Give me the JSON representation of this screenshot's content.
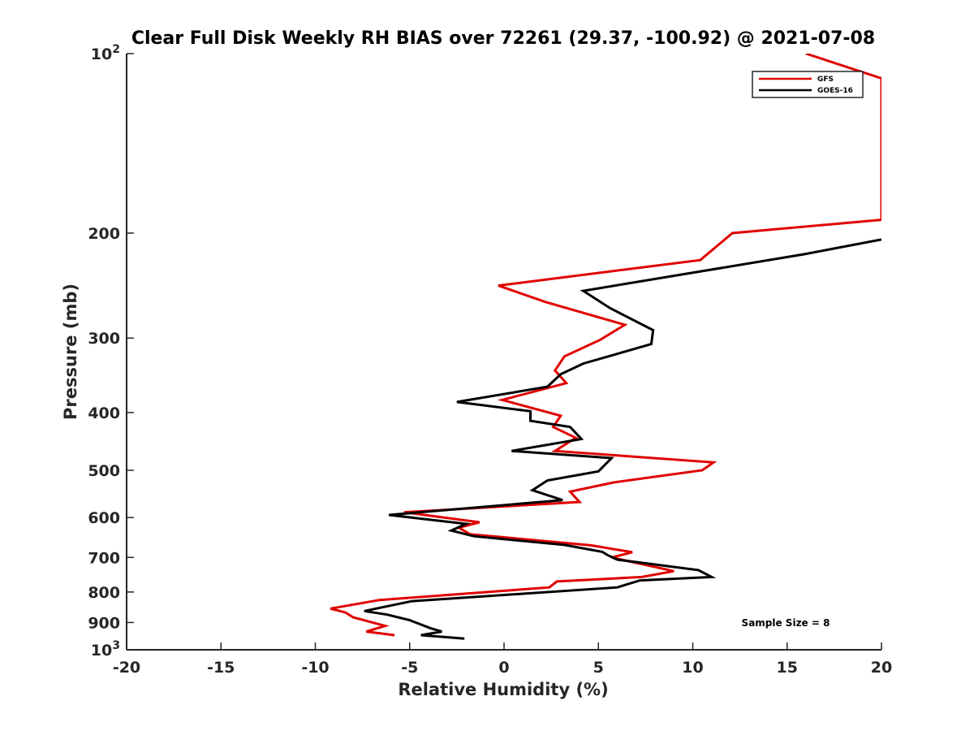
{
  "chart_data": {
    "type": "line",
    "title": "Clear Full Disk Weekly RH BIAS over 72261 (29.37, -100.92) @ 2021-07-08",
    "xlabel": "Relative Humidity (%)",
    "ylabel": "Pressure (mb)",
    "xlim": [
      -20,
      20
    ],
    "ylim": [
      100,
      1000
    ],
    "y_scale": "log",
    "y_reversed": true,
    "x_ticks": [
      "-20",
      "-15",
      "-10",
      "-5",
      "0",
      "5",
      "10",
      "15",
      "20"
    ],
    "y_ticks": [
      {
        "value": 100,
        "base": "10",
        "exp": "2"
      },
      {
        "value": 200,
        "label": "200"
      },
      {
        "value": 300,
        "label": "300"
      },
      {
        "value": 400,
        "label": "400"
      },
      {
        "value": 500,
        "label": "500"
      },
      {
        "value": 600,
        "label": "600"
      },
      {
        "value": 700,
        "label": "700"
      },
      {
        "value": 800,
        "label": "800"
      },
      {
        "value": 900,
        "label": "900"
      },
      {
        "value": 1000,
        "base": "10",
        "exp": "3"
      }
    ],
    "legend_position": "top-right",
    "annotation": "Sample Size = 8",
    "series": [
      {
        "name": "GFS",
        "color": "#e00000",
        "points": [
          [
            16.0,
            100
          ],
          [
            20.0,
            110
          ],
          [
            20.0,
            190
          ],
          [
            12.1,
            200
          ],
          [
            10.4,
            222
          ],
          [
            -0.3,
            245
          ],
          [
            2.2,
            261
          ],
          [
            6.4,
            285
          ],
          [
            5.1,
            302
          ],
          [
            3.2,
            322
          ],
          [
            2.7,
            340
          ],
          [
            3.3,
            357
          ],
          [
            -0.1,
            381
          ],
          [
            3.0,
            405
          ],
          [
            2.6,
            423
          ],
          [
            3.8,
            441
          ],
          [
            2.7,
            464
          ],
          [
            11.1,
            485
          ],
          [
            10.5,
            500
          ],
          [
            5.8,
            524
          ],
          [
            3.5,
            543
          ],
          [
            4.0,
            565
          ],
          [
            -5.3,
            588
          ],
          [
            -1.3,
            611
          ],
          [
            -2.4,
            624
          ],
          [
            -1.8,
            640
          ],
          [
            4.6,
            668
          ],
          [
            6.8,
            686
          ],
          [
            5.7,
            700
          ],
          [
            9.0,
            738
          ],
          [
            7.3,
            755
          ],
          [
            2.8,
            768
          ],
          [
            2.4,
            786
          ],
          [
            -6.6,
            825
          ],
          [
            -9.2,
            853
          ],
          [
            -8.4,
            866
          ],
          [
            -8.0,
            882
          ],
          [
            -6.3,
            912
          ],
          [
            -7.3,
            932
          ],
          [
            -5.8,
            945
          ]
        ]
      },
      {
        "name": "GOES-16",
        "color": "#000000",
        "points": [
          [
            20.0,
            205
          ],
          [
            15.9,
            217
          ],
          [
            4.2,
            250
          ],
          [
            5.6,
            267
          ],
          [
            7.9,
            291
          ],
          [
            7.8,
            307
          ],
          [
            4.2,
            331
          ],
          [
            3.0,
            345
          ],
          [
            2.3,
            362
          ],
          [
            -2.5,
            384
          ],
          [
            1.4,
            398
          ],
          [
            1.4,
            413
          ],
          [
            3.5,
            423
          ],
          [
            4.1,
            443
          ],
          [
            0.4,
            464
          ],
          [
            5.7,
            477
          ],
          [
            5.0,
            502
          ],
          [
            2.3,
            520
          ],
          [
            1.5,
            540
          ],
          [
            3.1,
            561
          ],
          [
            -6.1,
            594
          ],
          [
            -2.0,
            615
          ],
          [
            -2.8,
            631
          ],
          [
            -1.6,
            645
          ],
          [
            3.2,
            667
          ],
          [
            5.2,
            685
          ],
          [
            5.5,
            694
          ],
          [
            6.0,
            706
          ],
          [
            10.3,
            735
          ],
          [
            11.0,
            755
          ],
          [
            7.2,
            765
          ],
          [
            6.0,
            786
          ],
          [
            -4.9,
            829
          ],
          [
            -7.4,
            861
          ],
          [
            -6.2,
            873
          ],
          [
            -5.0,
            892
          ],
          [
            -3.9,
            920
          ],
          [
            -3.3,
            932
          ],
          [
            -4.4,
            945
          ],
          [
            -2.1,
            958
          ]
        ]
      }
    ]
  }
}
